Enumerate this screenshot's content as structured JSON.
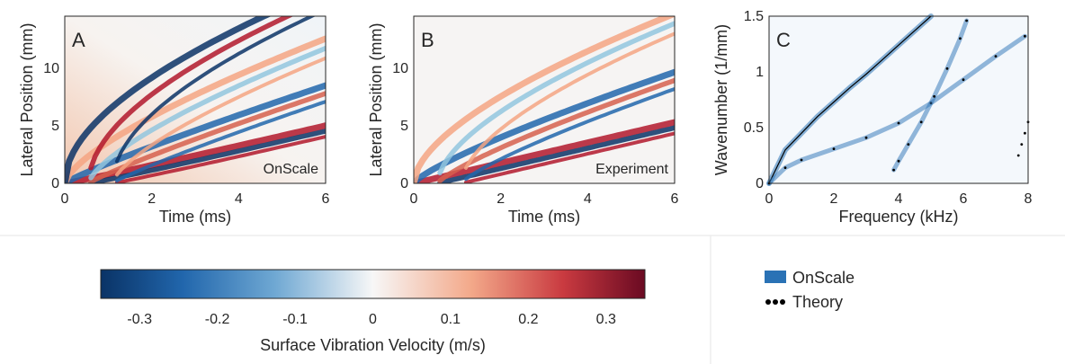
{
  "colors": {
    "neg_max": "#0a3366",
    "neg_mid": "#4a90c8",
    "zero": "#f7f7f7",
    "pos_mid": "#ea8f6e",
    "pos_max": "#6a0a22",
    "onscale_band": "#2a72b5",
    "theory_dots": "#000000"
  },
  "chart_data": [
    {
      "type": "heatmap",
      "panel_label": "A",
      "box_label": "OnScale",
      "xlabel": "Time (ms)",
      "ylabel": "Lateral Position (mm)",
      "xlim": [
        0,
        6
      ],
      "ylim": [
        0,
        14.5
      ],
      "xticks": [
        "0",
        "2",
        "4",
        "6"
      ],
      "yticks": [
        "0",
        "5",
        "10"
      ],
      "ridges": [
        {
          "c": 0.18,
          "slope": 1.1,
          "sign": 1
        },
        {
          "c": 0.42,
          "slope": 0.85,
          "sign": -1
        },
        {
          "c": 0.7,
          "slope": 0.65,
          "sign": 1
        },
        {
          "c": 1.0,
          "slope": 0.5,
          "sign": -1
        }
      ]
    },
    {
      "type": "heatmap",
      "panel_label": "B",
      "box_label": "Experiment",
      "xlabel": "Time (ms)",
      "ylabel": "Lateral Position (mm)",
      "xlim": [
        0,
        6
      ],
      "ylim": [
        0,
        14.5
      ],
      "xticks": [
        "0",
        "2",
        "4",
        "6"
      ],
      "yticks": [
        "0",
        "5",
        "10"
      ],
      "ridges": [
        {
          "c": 0.2,
          "slope": 1.0,
          "sign": 1
        },
        {
          "c": 0.5,
          "slope": 0.75,
          "sign": -1
        },
        {
          "c": 0.85,
          "slope": 0.55,
          "sign": 1
        }
      ]
    },
    {
      "type": "scatter",
      "panel_label": "C",
      "xlabel": "Frequency (kHz)",
      "ylabel": "Wavenumber (1/mm)",
      "xlim": [
        0,
        8
      ],
      "ylim": [
        0,
        1.5
      ],
      "xticks": [
        "0",
        "2",
        "4",
        "6",
        "8"
      ],
      "yticks": [
        "0",
        "0.5",
        "1",
        "1.5"
      ],
      "series": [
        {
          "name": "OnScale",
          "x": [
            0,
            0.5,
            1,
            1.5,
            2,
            2.5,
            3,
            3.5,
            4,
            4.5,
            5
          ],
          "y": [
            0,
            0.3,
            0.45,
            0.6,
            0.73,
            0.86,
            0.98,
            1.11,
            1.24,
            1.37,
            1.5
          ]
        },
        {
          "name": "Theory",
          "x": [
            0,
            0.5,
            1,
            2,
            3,
            4,
            5,
            6,
            7,
            7.9
          ],
          "y": [
            0,
            0.14,
            0.21,
            0.31,
            0.41,
            0.54,
            0.72,
            0.93,
            1.14,
            1.32
          ]
        },
        {
          "name": "Theory",
          "x": [
            3.85,
            4.0,
            4.3,
            4.7,
            5.1,
            5.5,
            5.9,
            6.1
          ],
          "y": [
            0.12,
            0.2,
            0.35,
            0.55,
            0.78,
            1.03,
            1.3,
            1.46
          ]
        },
        {
          "name": "Theory",
          "x": [
            7.7,
            7.8,
            7.9,
            8.0
          ],
          "y": [
            0.25,
            0.35,
            0.45,
            0.55
          ]
        }
      ]
    }
  ],
  "colorbar": {
    "label": "Surface Vibration Velocity (m/s)",
    "range": [
      -0.35,
      0.35
    ],
    "ticks": [
      "-0.3",
      "-0.2",
      "-0.1",
      "0",
      "0.1",
      "0.2",
      "0.3"
    ]
  },
  "legend": {
    "entries": [
      {
        "label": "OnScale",
        "icon": "blue-square"
      },
      {
        "label": "Theory",
        "icon": "three-dots"
      }
    ]
  }
}
